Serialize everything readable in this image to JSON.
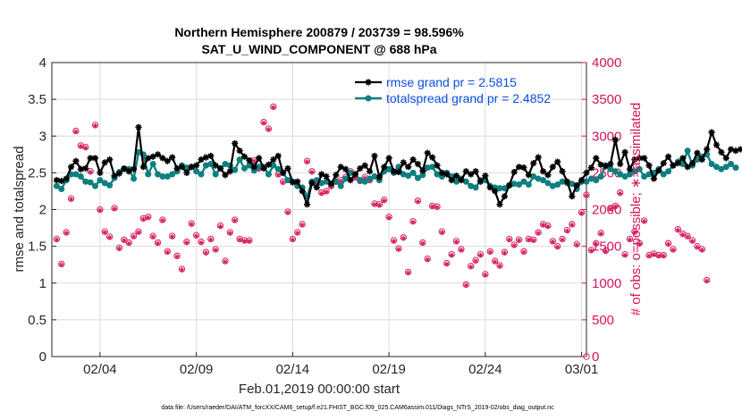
{
  "chart_data": {
    "type": "line",
    "title_line1": "Northern Hemisphere 200879 / 203739 = 98.596%",
    "title_line2": "SAT_U_WIND_COMPONENT @ 688 hPa",
    "xlabel": "Feb.01,2019 00:00:00 start",
    "ylabel_left": "rmse and totalspread",
    "ylabel_right": "# of obs: o=possible; ∗=assimilated",
    "footnote": "data file: /Users/raeder/DAI/ATM_forcXX/CAM6_setup/f.e21.FHIST_BGC.f09_025.CAM6assim.011/Diags_NTrS_2019-02/obs_diag_output.nc",
    "x_unit": "days since Feb.01,2019 00:00:00",
    "xlim": [
      0.5,
      28.25
    ],
    "ylim_left": [
      0,
      4
    ],
    "ylim_right": [
      0,
      4000
    ],
    "x_ticks": [
      3,
      8,
      13,
      18,
      23,
      28
    ],
    "x_tick_labels": [
      "02/04",
      "02/09",
      "02/14",
      "02/19",
      "02/24",
      "03/01"
    ],
    "y_left_ticks": [
      "0",
      "0.5",
      "1",
      "1.5",
      "2",
      "2.5",
      "3",
      "3.5",
      "4"
    ],
    "y_right_ticks": [
      "0",
      "500",
      "1000",
      "1500",
      "2000",
      "2500",
      "3000",
      "3500",
      "4000"
    ],
    "legend_rmse": "rmse grand pr = 2.5815",
    "legend_spread": "totalspread grand pr = 2.4852",
    "colors": {
      "rmse": "#000000",
      "spread": "#0f7f80",
      "obs": "#d4145a",
      "legend_text": "#0b4fe0"
    },
    "series": [
      {
        "name": "rmse",
        "values": [
          2.4,
          2.39,
          2.42,
          2.58,
          2.66,
          2.55,
          2.56,
          2.7,
          2.7,
          2.5,
          2.64,
          2.68,
          2.46,
          2.49,
          2.56,
          2.52,
          2.55,
          3.12,
          2.58,
          2.7,
          2.72,
          2.75,
          2.7,
          2.66,
          2.71,
          2.56,
          2.58,
          2.5,
          2.58,
          2.6,
          2.68,
          2.71,
          2.73,
          2.6,
          2.56,
          2.47,
          2.52,
          2.9,
          2.8,
          2.72,
          2.67,
          2.58,
          2.7,
          2.56,
          2.61,
          2.68,
          2.73,
          2.5,
          2.56,
          2.37,
          2.38,
          2.25,
          2.07,
          2.36,
          2.3,
          2.48,
          2.45,
          2.35,
          2.47,
          2.58,
          2.55,
          2.4,
          2.48,
          2.56,
          2.6,
          2.52,
          2.73,
          2.44,
          2.58,
          2.7,
          2.52,
          2.51,
          2.64,
          2.58,
          2.68,
          2.62,
          2.53,
          2.77,
          2.71,
          2.6,
          2.5,
          2.48,
          2.4,
          2.46,
          2.4,
          2.52,
          2.48,
          2.52,
          2.38,
          2.46,
          2.3,
          2.25,
          2.07,
          2.18,
          2.33,
          2.51,
          2.58,
          2.57,
          2.47,
          2.63,
          2.71,
          2.52,
          2.47,
          2.58,
          2.65,
          2.52,
          2.38,
          2.18,
          2.33,
          2.4,
          2.5,
          2.57,
          2.7,
          2.61,
          2.59,
          2.62,
          2.95,
          2.62,
          2.78,
          2.55,
          2.68,
          2.7,
          2.7,
          2.6,
          2.42,
          2.53,
          2.63,
          2.72,
          2.6,
          2.63,
          2.7,
          2.58,
          2.63,
          2.77,
          2.68,
          2.82,
          3.05,
          2.88,
          2.78,
          2.7,
          2.82,
          2.8,
          2.82
        ]
      },
      {
        "name": "totalspread",
        "values": [
          2.32,
          2.28,
          2.4,
          2.48,
          2.48,
          2.45,
          2.38,
          2.37,
          2.32,
          2.4,
          2.36,
          2.33,
          2.43,
          2.51,
          2.55,
          2.55,
          2.42,
          2.78,
          2.75,
          2.48,
          2.62,
          2.48,
          2.45,
          2.45,
          2.48,
          2.52,
          2.6,
          2.57,
          2.58,
          2.52,
          2.48,
          2.6,
          2.62,
          2.48,
          2.56,
          2.62,
          2.6,
          2.54,
          2.68,
          2.56,
          2.6,
          2.53,
          2.58,
          2.58,
          2.48,
          2.6,
          2.55,
          2.5,
          2.4,
          2.38,
          2.32,
          2.3,
          2.18,
          2.38,
          2.4,
          2.36,
          2.38,
          2.35,
          2.38,
          2.32,
          2.42,
          2.5,
          2.48,
          2.4,
          2.38,
          2.42,
          2.45,
          2.4,
          2.52,
          2.55,
          2.5,
          2.58,
          2.48,
          2.46,
          2.5,
          2.43,
          2.47,
          2.57,
          2.58,
          2.48,
          2.45,
          2.5,
          2.45,
          2.38,
          2.42,
          2.38,
          2.32,
          2.3,
          2.4,
          2.4,
          2.32,
          2.3,
          2.29,
          2.29,
          2.33,
          2.35,
          2.34,
          2.38,
          2.34,
          2.45,
          2.42,
          2.4,
          2.36,
          2.32,
          2.34,
          2.38,
          2.36,
          2.35,
          2.28,
          2.38,
          2.38,
          2.42,
          2.4,
          2.45,
          2.6,
          2.55,
          2.52,
          2.48,
          2.45,
          2.48,
          2.52,
          2.55,
          2.45,
          2.48,
          2.5,
          2.55,
          2.48,
          2.52,
          2.6,
          2.65,
          2.62,
          2.8,
          2.6,
          2.68,
          2.72,
          2.75,
          2.62,
          2.58,
          2.55,
          2.58,
          2.62,
          2.57
        ]
      },
      {
        "name": "obs_possible",
        "values": [
          1600,
          1260,
          1690,
          2150,
          3070,
          2870,
          2850,
          2520,
          3150,
          2000,
          1700,
          1630,
          2020,
          1480,
          1590,
          1550,
          1640,
          1700,
          1880,
          1900,
          1640,
          1550,
          1860,
          1430,
          1640,
          1370,
          1190,
          1560,
          1810,
          1650,
          1560,
          1420,
          1600,
          1460,
          1780,
          1300,
          1690,
          1860,
          1600,
          1580,
          1580,
          2670,
          2560,
          3190,
          3100,
          3400,
          2480,
          2380,
          1970,
          1600,
          1690,
          1800,
          2660,
          2520,
          2360,
          2230,
          2250,
          2320,
          2380,
          2400,
          2440,
          2520,
          2440,
          2390,
          2440,
          2400,
          2080,
          2070,
          2130,
          1900,
          1580,
          1470,
          1620,
          1150,
          1840,
          2120,
          1550,
          1330,
          2050,
          2040,
          1700,
          1270,
          1390,
          1570,
          1460,
          980,
          1230,
          1310,
          1390,
          1120,
          1430,
          1300,
          1240,
          1420,
          1600,
          1520,
          1590,
          1430,
          1600,
          1590,
          1690,
          1800,
          1780,
          1570,
          1500,
          1600,
          1720,
          1800,
          1530,
          1960,
          2200,
          1450,
          1540,
          1680,
          1440,
          2020,
          2050,
          2230,
          1390,
          1600,
          1700,
          1540,
          1850,
          1380,
          1400,
          1380,
          1380,
          1540,
          1460,
          1730,
          1670,
          1640,
          1580,
          1500,
          1460,
          1040
        ]
      },
      {
        "name": "obs_assimilated",
        "values": [
          1590,
          1250,
          1680,
          2140,
          3060,
          2860,
          2840,
          2510,
          3140,
          1990,
          1690,
          1620,
          2010,
          1470,
          1580,
          1540,
          1630,
          1690,
          1870,
          1890,
          1630,
          1540,
          1850,
          1420,
          1630,
          1360,
          1180,
          1550,
          1800,
          1640,
          1550,
          1410,
          1590,
          1450,
          1770,
          1290,
          1680,
          1850,
          1590,
          1570,
          1570,
          2660,
          2550,
          3180,
          3090,
          3390,
          2470,
          2370,
          1960,
          1590,
          1680,
          1790,
          2650,
          2510,
          2350,
          2220,
          2240,
          2310,
          2370,
          2390,
          2430,
          2510,
          2430,
          2380,
          2430,
          2390,
          2070,
          2060,
          2120,
          1890,
          1570,
          1460,
          1610,
          1140,
          1830,
          2110,
          1540,
          1320,
          2040,
          2030,
          1690,
          1260,
          1380,
          1560,
          1450,
          970,
          1220,
          1300,
          1380,
          1110,
          1420,
          1290,
          1230,
          1410,
          1590,
          1510,
          1580,
          1420,
          1590,
          1580,
          1680,
          1790,
          1770,
          1560,
          1490,
          1590,
          1710,
          1790,
          1520,
          1950,
          2190,
          1440,
          1530,
          1670,
          1430,
          2010,
          2040,
          2220,
          1380,
          1590,
          1690,
          1530,
          1840,
          1370,
          1390,
          1370,
          1370,
          1530,
          1450,
          1720,
          1660,
          1630,
          1570,
          1490,
          1450,
          1030
        ]
      }
    ],
    "obs_final_value": 0
  }
}
